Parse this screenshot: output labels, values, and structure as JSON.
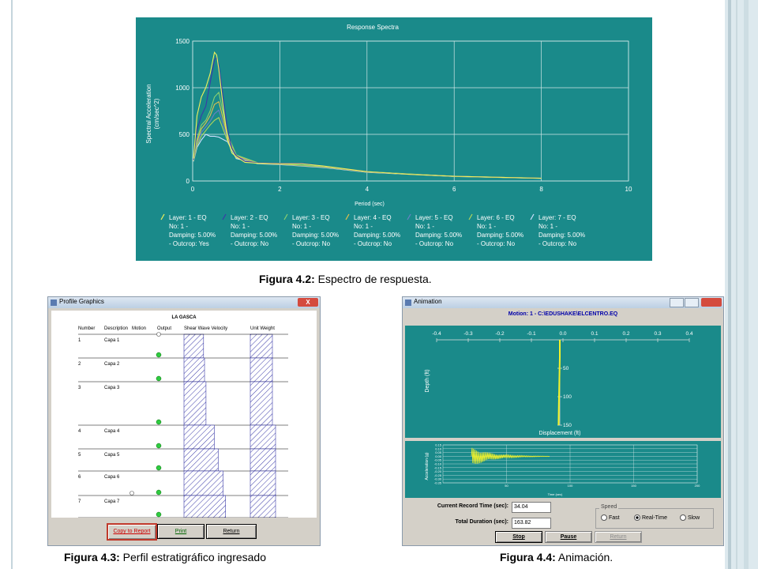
{
  "fig2": {
    "title": "Response Spectra",
    "xlabel": "Period (sec)",
    "ylabel": "Spectral Acceleration",
    "ylabel2": "(cm/sec^2)",
    "xticks": [
      "0",
      "2",
      "4",
      "6",
      "8",
      "10"
    ],
    "yticks": [
      "0",
      "500",
      "1000",
      "1500"
    ],
    "legend": [
      {
        "l1": "Layer:  1 - EQ",
        "l2": "No:  1 -",
        "l3": "Damping: 5.00%",
        "l4": "- Outcrop: Yes",
        "color": "#f2f25a"
      },
      {
        "l1": "Layer:  2 - EQ",
        "l2": "No:  1 -",
        "l3": "Damping: 5.00%",
        "l4": "- Outcrop: No",
        "color": "#3a3aa8"
      },
      {
        "l1": "Layer:  3 - EQ",
        "l2": "No:  1 -",
        "l3": "Damping: 5.00%",
        "l4": "- Outcrop: No",
        "color": "#8ad070"
      },
      {
        "l1": "Layer:  4 - EQ",
        "l2": "No:  1 -",
        "l3": "Damping: 5.00%",
        "l4": "- Outcrop: No",
        "color": "#e6c24a"
      },
      {
        "l1": "Layer:  5 - EQ",
        "l2": "No:  1 -",
        "l3": "Damping: 5.00%",
        "l4": "- Outcrop: No",
        "color": "#6a80c8"
      },
      {
        "l1": "Layer:  6 - EQ",
        "l2": "No:  1 -",
        "l3": "Damping: 5.00%",
        "l4": "- Outcrop: No",
        "color": "#b2d65a"
      },
      {
        "l1": "Layer:  7 - EQ",
        "l2": "No:  1 -",
        "l3": "Damping: 5.00%",
        "l4": "- Outcrop: No",
        "color": "#cfe0ff"
      }
    ],
    "caption_bold": "Figura 4.2:",
    "caption_text": " Espectro de respuesta."
  },
  "chart_data": {
    "type": "line",
    "title": "Response Spectra",
    "xlabel": "Period (sec)",
    "ylabel": "Spectral Acceleration (cm/sec^2)",
    "xlim": [
      0,
      10
    ],
    "ylim": [
      0,
      1500
    ],
    "series": [
      {
        "name": "Layer: 1 - EQ No: 1 - Damping: 5.00% - Outcrop: Yes",
        "color": "#f2f25a",
        "x": [
          0.02,
          0.1,
          0.2,
          0.3,
          0.4,
          0.5,
          0.55,
          0.6,
          0.7,
          0.8,
          0.9,
          1.0,
          1.2,
          1.5,
          2.0,
          2.5,
          3.0,
          4.0,
          5.0,
          6.0,
          7.0,
          8.0
        ],
        "y": [
          240,
          700,
          900,
          1000,
          1150,
          1380,
          1350,
          1200,
          800,
          450,
          300,
          260,
          200,
          190,
          185,
          185,
          160,
          100,
          70,
          50,
          40,
          30
        ]
      },
      {
        "name": "Layer: 2 - EQ No: 1 - Damping: 5.00% - Outcrop: No",
        "color": "#3a3aa8",
        "x": [
          0.02,
          0.1,
          0.2,
          0.3,
          0.4,
          0.5,
          0.55,
          0.6,
          0.7,
          0.8,
          0.9,
          1.0,
          1.2,
          1.5,
          2.0,
          2.5,
          3.0,
          4.0,
          5.0,
          6.0,
          7.0,
          8.0
        ],
        "y": [
          230,
          550,
          700,
          800,
          1050,
          1300,
          1320,
          1250,
          900,
          550,
          350,
          270,
          210,
          195,
          190,
          190,
          160,
          100,
          70,
          50,
          40,
          30
        ]
      },
      {
        "name": "Layer: 3 - EQ No: 1 - Damping: 5.00% - Outcrop: No",
        "color": "#8ad070",
        "x": [
          0.02,
          0.1,
          0.2,
          0.3,
          0.4,
          0.5,
          0.6,
          0.8,
          1.0,
          1.5,
          2.0,
          3.0,
          4.0,
          6.0,
          8.0
        ],
        "y": [
          230,
          450,
          600,
          650,
          750,
          900,
          950,
          500,
          280,
          195,
          185,
          155,
          100,
          50,
          30
        ]
      },
      {
        "name": "Layer: 4 - EQ No: 1 - Damping: 5.00% - Outcrop: No",
        "color": "#e6c24a",
        "x": [
          0.02,
          0.1,
          0.2,
          0.3,
          0.4,
          0.5,
          0.6,
          0.8,
          1.0,
          1.5,
          2.0,
          3.0,
          4.0,
          6.0,
          8.0
        ],
        "y": [
          225,
          420,
          560,
          620,
          700,
          820,
          850,
          480,
          270,
          192,
          182,
          152,
          98,
          50,
          30
        ]
      },
      {
        "name": "Layer: 5 - EQ No: 1 - Damping: 5.00% - Outcrop: No",
        "color": "#6a80c8",
        "x": [
          0.02,
          0.1,
          0.2,
          0.3,
          0.4,
          0.5,
          0.6,
          0.8,
          1.0,
          1.5,
          2.0,
          3.0,
          4.0,
          6.0,
          8.0
        ],
        "y": [
          220,
          400,
          520,
          580,
          640,
          720,
          760,
          450,
          260,
          190,
          180,
          150,
          96,
          50,
          30
        ]
      },
      {
        "name": "Layer: 6 - EQ No: 1 - Damping: 5.00% - Outcrop: No",
        "color": "#b2d65a",
        "x": [
          0.02,
          0.1,
          0.2,
          0.3,
          0.4,
          0.5,
          0.6,
          0.8,
          1.0,
          1.5,
          2.0,
          3.0,
          4.0,
          6.0,
          8.0
        ],
        "y": [
          215,
          380,
          480,
          540,
          600,
          650,
          680,
          430,
          250,
          188,
          178,
          148,
          95,
          50,
          30
        ]
      },
      {
        "name": "Layer: 7 - EQ No: 1 - Damping: 5.00% - Outcrop: No",
        "color": "#cfe0ff",
        "x": [
          0.02,
          0.1,
          0.2,
          0.3,
          0.4,
          0.5,
          0.6,
          0.8,
          1.0,
          1.5,
          2.0,
          3.0,
          4.0,
          6.0,
          8.0
        ],
        "y": [
          210,
          360,
          440,
          500,
          480,
          480,
          470,
          420,
          240,
          185,
          175,
          145,
          92,
          48,
          28
        ]
      }
    ]
  },
  "fig3": {
    "window_title": "Profile Graphics",
    "close_glyph": "X",
    "project_title": "LA GASCA",
    "headers": {
      "number": "Number",
      "description": "Description",
      "motion": "Motion",
      "output": "Output",
      "vs": "Shear Wave Velocity",
      "uw": "Unit Weight"
    },
    "layers": [
      {
        "num": "1",
        "name": "Capa 1",
        "vs": 0.4,
        "uw": 0.35
      },
      {
        "num": "2",
        "name": "Capa 2",
        "vs": 0.42,
        "uw": 0.35
      },
      {
        "num": "3",
        "name": "Capa 3",
        "vs": 0.45,
        "uw": 0.35
      },
      {
        "num": "4",
        "name": "Capa 4",
        "vs": 0.62,
        "uw": 0.4
      },
      {
        "num": "5",
        "name": "Capa 5",
        "vs": 0.7,
        "uw": 0.4
      },
      {
        "num": "6",
        "name": "Capa 6",
        "vs": 0.8,
        "uw": 0.4
      },
      {
        "num": "7",
        "name": "Capa 7",
        "vs": 0.85,
        "uw": 0.4
      }
    ],
    "buttons": {
      "copy": "Copy to Report",
      "print": "Print",
      "return": "Return"
    },
    "caption_bold": "Figura 4.3:",
    "caption_text": " Perfil estratigráfico ingresado"
  },
  "fig4": {
    "window_title": "Animation",
    "motion_label": "Motion: 1 - C:\\EDUSHAKE\\ELCENTRO.EQ",
    "depth_axis_label": "Depth (ft)",
    "displacement_label": "Displacement (ft)",
    "disp_ticks": [
      "-0.4",
      "-0.3",
      "-0.2",
      "-0.1",
      "0.0",
      "0.1",
      "0.2",
      "0.3",
      "0.4"
    ],
    "depth_ticks": [
      "50",
      "100",
      "150"
    ],
    "accel_axis_label": "Acceleration (g)",
    "accel_ticks": [
      "0.15",
      "0.10",
      "0.05",
      "0.00",
      "-0.05",
      "-0.10",
      "-0.15",
      "-0.20",
      "-0.25",
      "-0.30",
      "-0.35"
    ],
    "time_ticks": [
      "50",
      "100",
      "150",
      "200"
    ],
    "time_label": "Time (sec)",
    "current_time_label": "Current Record Time (sec):",
    "current_time_value": "34.04",
    "total_duration_label": "Total Duration (sec):",
    "total_duration_value": "163.82",
    "speed_label": "Speed",
    "speed_options": [
      "Fast",
      "Real-Time",
      "Slow"
    ],
    "speed_selected": "Real-Time",
    "buttons": {
      "stop": "Stop",
      "pause": "Pause",
      "return": "Return"
    },
    "caption_bold": "Figura 4.4:",
    "caption_text": " Animación."
  },
  "colors": {
    "teal": "#1a8a8a",
    "window_gray": "#d4d0c8",
    "titlebar": "#c9d7e6",
    "close_red": "#d44b3e"
  }
}
